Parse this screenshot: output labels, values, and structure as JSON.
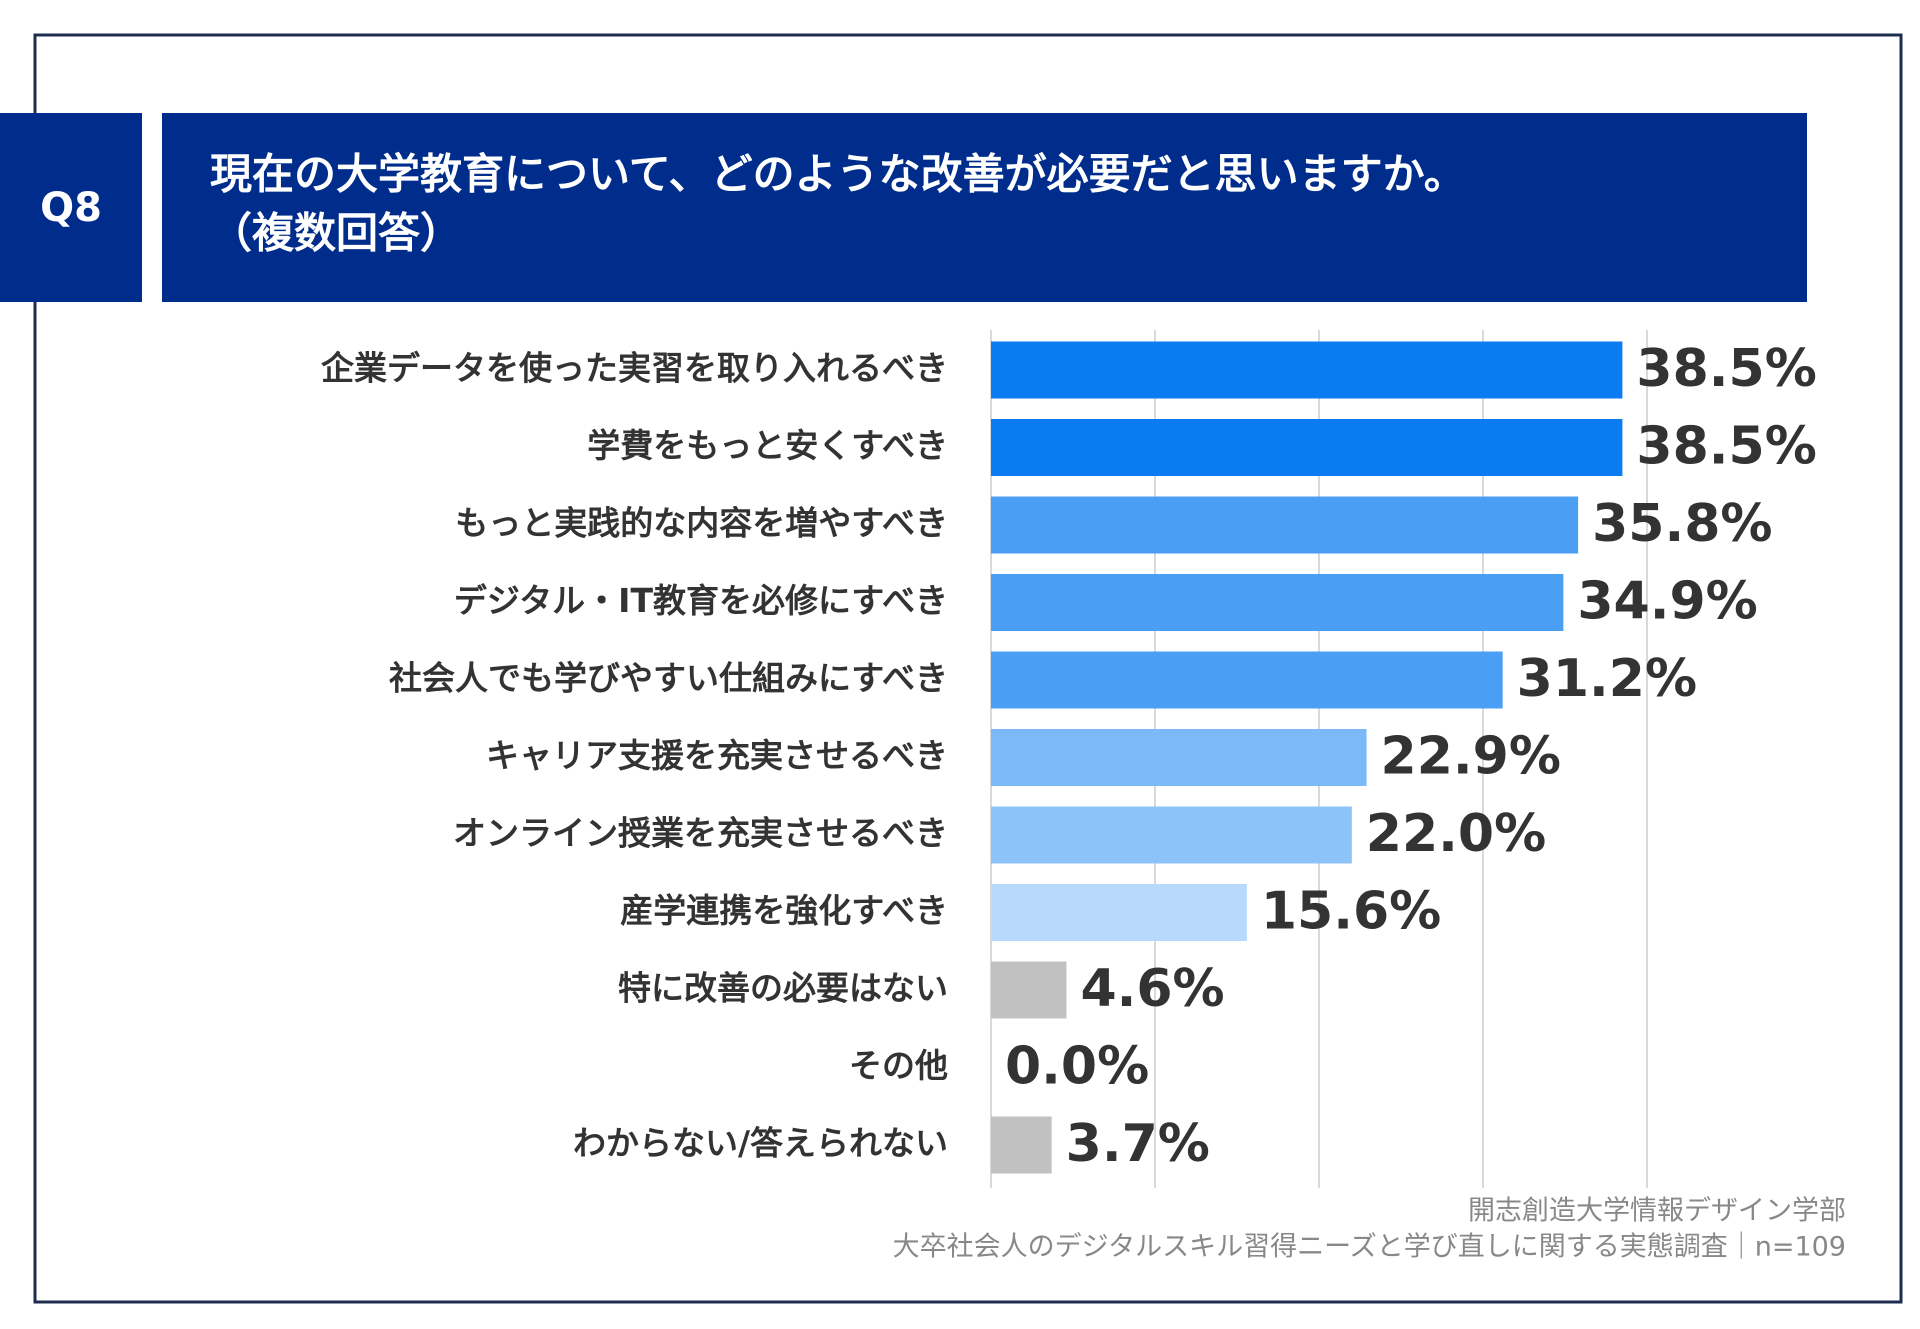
{
  "chart_data": {
    "type": "bar",
    "orientation": "horizontal",
    "badge": "Q8",
    "title": "現在の大学教育について、どのような改善が必要だと思いますか。",
    "subtitle": "（複数回答）",
    "categories": [
      "企業データを使った実習を取り入れるべき",
      "学費をもっと安くすべき",
      "もっと実践的な内容を増やすべき",
      "デジタル・IT教育を必修にすべき",
      "社会人でも学びやすい仕組みにすべき",
      "キャリア支援を充実させるべき",
      "オンライン授業を充実させるべき",
      "産学連携を強化すべき",
      "特に改善の必要はない",
      "その他",
      "わからない/答えられない"
    ],
    "values": [
      38.5,
      38.5,
      35.8,
      34.9,
      31.2,
      22.9,
      22.0,
      15.6,
      4.6,
      0.0,
      3.7
    ],
    "value_labels": [
      "38.5%",
      "38.5%",
      "35.8%",
      "34.9%",
      "31.2%",
      "22.9%",
      "22.0%",
      "15.6%",
      "4.6%",
      "0.0%",
      "3.7%"
    ],
    "colors": [
      "#0a7bf0",
      "#0a7bf0",
      "#4a9ff5",
      "#4a9ff5",
      "#4a9ff5",
      "#7bb9f8",
      "#8cc3f9",
      "#b7d9fc",
      "#c1c1c1",
      "#c1c1c1",
      "#c1c1c1"
    ],
    "xlim": [
      0,
      40
    ],
    "xticks": [
      0,
      10,
      20,
      30,
      40
    ],
    "grid": true,
    "source": [
      "開志創造大学情報デザイン学部",
      "大卒社会人のデジタルスキル習得ニーズと学び直しに関する実態調査｜n=109"
    ]
  }
}
